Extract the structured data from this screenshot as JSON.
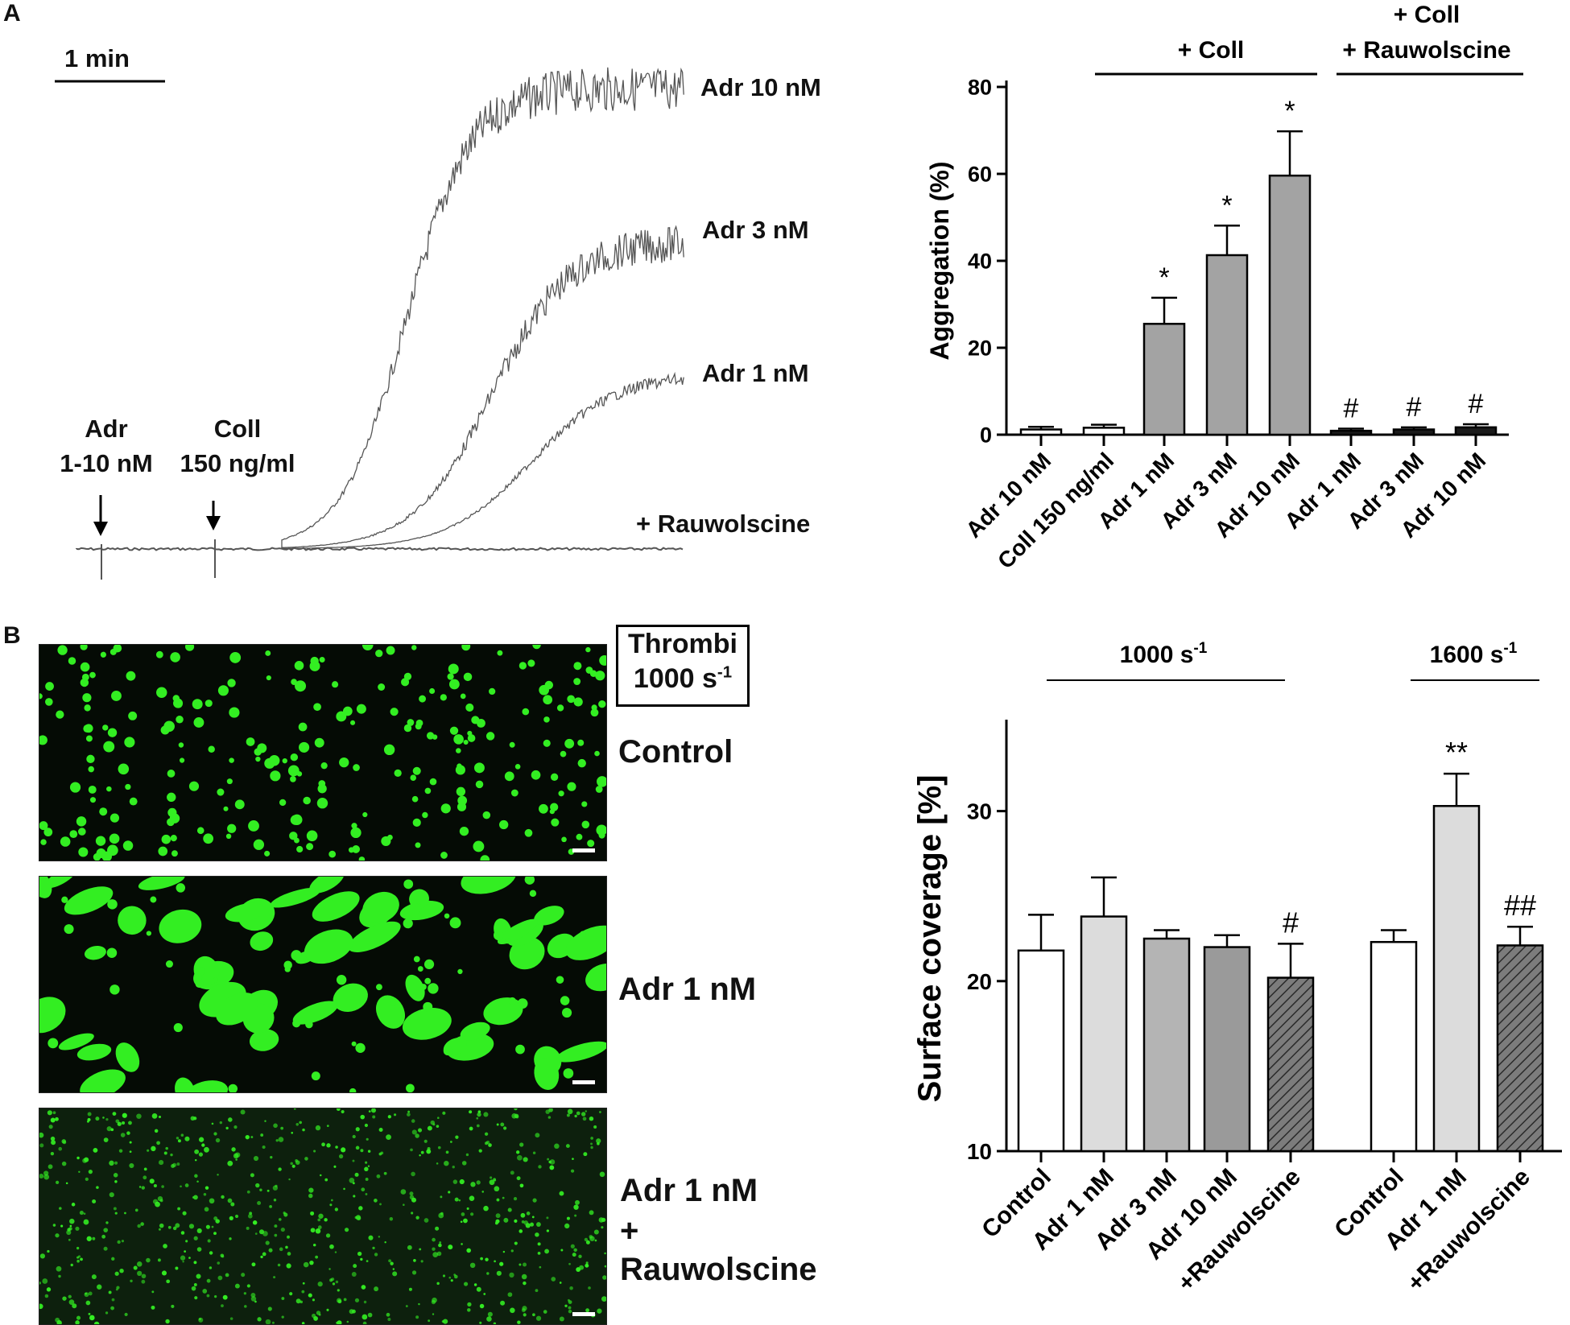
{
  "panel_a": {
    "letter": "A",
    "scale_label": "1 min",
    "arrow1_line1": "Adr",
    "arrow1_line2": "1-10 nM",
    "arrow2_line1": "Coll",
    "arrow2_line2": "150 ng/ml",
    "trace_labels": [
      "Adr 10 nM",
      "Adr 3 nM",
      "Adr 1 nM",
      "+ Rauwolscine"
    ],
    "trace_color": "#555555"
  },
  "panel_b": {
    "letter": "B",
    "thrombi_title": "Thrombi",
    "thrombi_shear": "1000 s",
    "thrombi_shear_exp": "-1",
    "micro_labels": [
      "Control",
      "Adr 1 nM",
      "Adr 1 nM",
      "+",
      "Rauwolscine"
    ],
    "fluorescence_color": "#33ee22"
  },
  "chart_data": [
    {
      "type": "bar",
      "ylabel": "Aggregation (%)",
      "ylim": [
        0,
        80
      ],
      "yticks": [
        "0",
        "20",
        "40",
        "60",
        "80"
      ],
      "categories": [
        "Adr 10 nM",
        "Coll 150 ng/ml",
        "Adr 1 nM",
        "Adr 3 nM",
        "Adr 10 nM",
        "Adr 1 nM",
        "Adr 3 nM",
        "Adr 10 nM"
      ],
      "values": [
        1.2,
        1.6,
        25.5,
        41.3,
        59.6,
        0.9,
        1.2,
        1.7
      ],
      "errors": [
        0.6,
        0.7,
        6.0,
        6.8,
        10.2,
        0.5,
        0.5,
        0.7
      ],
      "annotations": [
        "",
        "",
        "*",
        "*",
        "*",
        "#",
        "#",
        "#"
      ],
      "fills": [
        "#ffffff",
        "#ffffff",
        "#a3a3a3",
        "#a3a3a3",
        "#a3a3a3",
        "#1a1a1a",
        "#1a1a1a",
        "#1a1a1a"
      ],
      "groups": [
        {
          "label": "+ Coll",
          "from": 2,
          "to": 4
        },
        {
          "label_line1": "+ Coll",
          "label_line2": "+ Rauwolscine",
          "from": 5,
          "to": 7
        }
      ]
    },
    {
      "type": "bar",
      "ylabel": "Surface coverage [%]",
      "ylim": [
        10,
        35
      ],
      "yticks": [
        "10",
        "20",
        "30"
      ],
      "categories": [
        "Control",
        "Adr 1 nM",
        "Adr 3 nM",
        "Adr 10 nM",
        "+Rauwolscine",
        "Control",
        "Adr 1 nM",
        "+Rauwolscine"
      ],
      "values": [
        21.8,
        23.8,
        22.5,
        22.0,
        20.2,
        22.3,
        30.3,
        22.1
      ],
      "errors": [
        2.1,
        2.3,
        0.5,
        0.7,
        2.0,
        0.7,
        1.9,
        1.1
      ],
      "annotations": [
        "",
        "",
        "",
        "",
        "#",
        "",
        "**",
        "##"
      ],
      "fills": [
        "#ffffff",
        "#dcdcdc",
        "#b4b4b4",
        "#9a9a9a",
        "#808080",
        "#ffffff",
        "#dcdcdc",
        "#808080"
      ],
      "hatched": [
        false,
        false,
        false,
        false,
        true,
        false,
        false,
        true
      ],
      "groups": [
        {
          "label": "1000 s",
          "exp": "-1",
          "from": 0,
          "to": 4
        },
        {
          "label": "1600 s",
          "exp": "-1",
          "from": 5,
          "to": 7
        }
      ]
    }
  ]
}
